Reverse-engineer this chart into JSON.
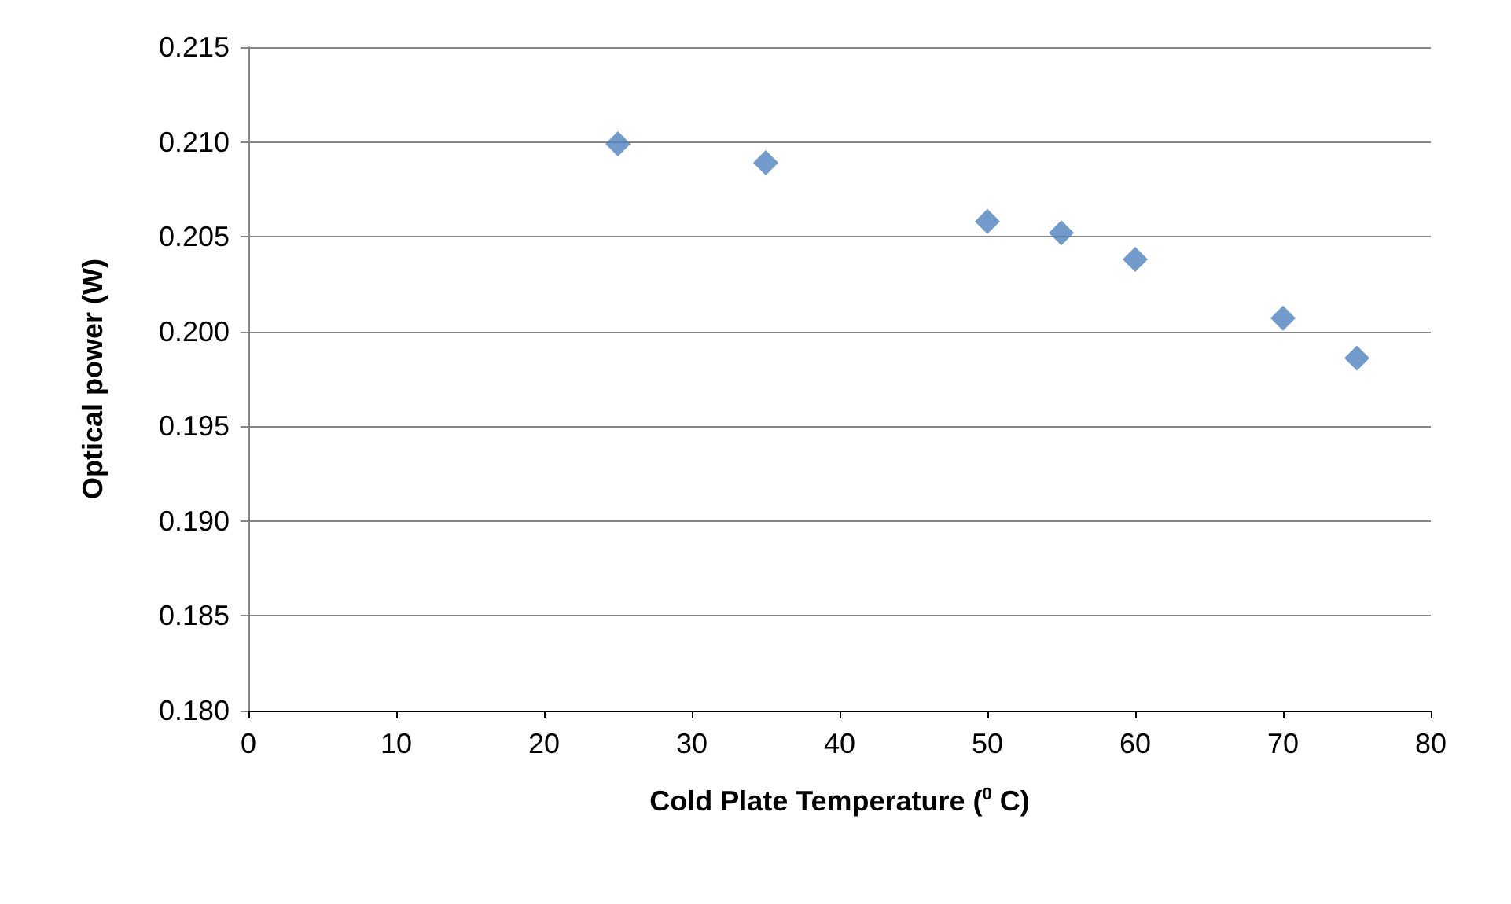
{
  "chart_data": {
    "type": "scatter",
    "xlabel": "Cold Plate Temperature ($^{0}$ C)",
    "ylabel": "Optical power (W)",
    "x": [
      25,
      35,
      50,
      55,
      60,
      70,
      75
    ],
    "series": [
      {
        "color": "#4f81bd",
        "values": [
          0.2099,
          0.2089,
          0.2058,
          0.2052,
          0.2038,
          0.2007,
          0.1986
        ]
      }
    ],
    "xlim": [
      0,
      80
    ],
    "xticks": [
      0,
      10,
      20,
      30,
      40,
      50,
      60,
      70,
      80
    ],
    "ylim": [
      0.18,
      0.215
    ],
    "yticks": [
      {
        "value": 0.18,
        "label": "0.180"
      },
      {
        "value": 0.185,
        "label": "0.185"
      },
      {
        "value": 0.19,
        "label": "0.190"
      },
      {
        "value": 0.195,
        "label": "0.195"
      },
      {
        "value": 0.2,
        "label": "0.200"
      },
      {
        "value": 0.205,
        "label": "0.205"
      },
      {
        "value": 0.21,
        "label": "0.210"
      },
      {
        "value": 0.215,
        "label": "0.215"
      }
    ],
    "grid": "y",
    "marker": "diamond"
  }
}
